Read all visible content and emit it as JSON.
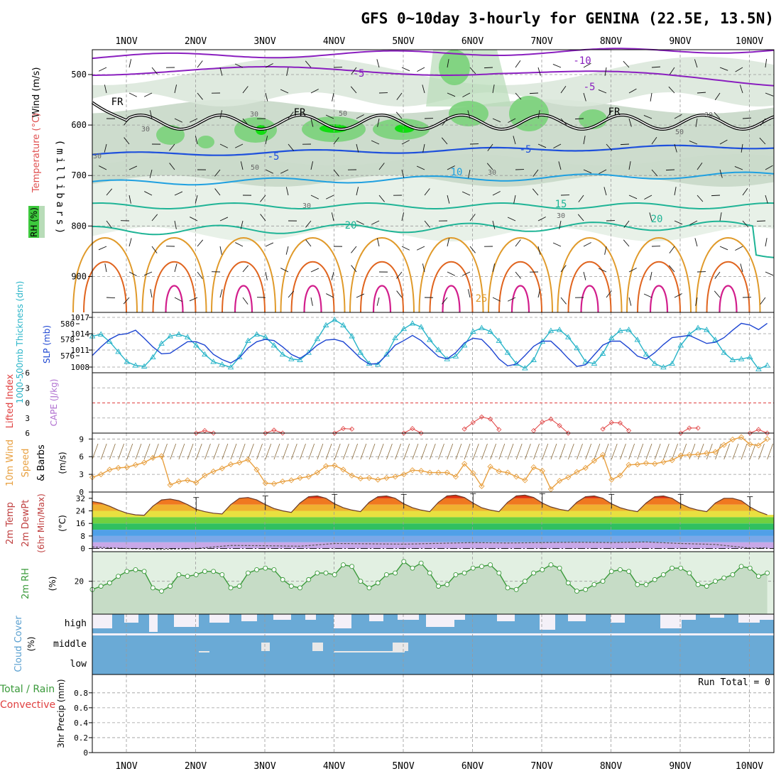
{
  "title": "GFS 0~10day 3-hourly for GENINA (22.5E, 13.5N)",
  "dates": [
    "1NOV",
    "2NOV",
    "3NOV",
    "4NOV",
    "5NOV",
    "6NOV",
    "7NOV",
    "8NOV",
    "9NOV",
    "10NOV"
  ],
  "colors": {
    "purple": "#8a1fbf",
    "black": "#000000",
    "blue": "#1e50dc",
    "lightblue": "#1fa0e0",
    "teal": "#1fb496",
    "orange": "#e09a2a",
    "darkorange": "#e0641e",
    "magenta": "#d21e8c",
    "rh_dark": "#3cc83c",
    "rh_mid": "#7ad27a",
    "rh_light": "#b8dcb8",
    "rh_gray": "#c8d8c8",
    "cloud": "#6aaad6",
    "cloud_bg": "#f4f0f8",
    "rh2m": "#3a9a3a",
    "rh2m_fill": "#e2f0e2",
    "wind10": "#e8a040",
    "barb": "#8a6a3a",
    "slp": "#1e46d2",
    "thick": "#28b4c8",
    "capeline": "#e04040",
    "li": "#e04040"
  },
  "upper": {
    "ylabel": "(millibars)",
    "legend_wind": "Wind (m/s)",
    "legend_temp": "Temperature (°C)",
    "legend_rh": "RH (%)",
    "yticks": [
      "500",
      "600",
      "700",
      "800",
      "900"
    ],
    "isotherm_labels": [
      {
        "text": "-10",
        "color": "purple"
      },
      {
        "text": "-5",
        "color": "purple"
      },
      {
        "text": "-5",
        "color": "purple"
      },
      {
        "text": "FR",
        "color": "black"
      },
      {
        "text": "FR",
        "color": "black"
      },
      {
        "text": "FR",
        "color": "black"
      },
      {
        "text": "-5",
        "color": "blue"
      },
      {
        "text": "-5",
        "color": "blue"
      },
      {
        "text": "10",
        "color": "lightblue"
      },
      {
        "text": "15",
        "color": "teal"
      },
      {
        "text": "20",
        "color": "teal"
      },
      {
        "text": "20",
        "color": "teal"
      },
      {
        "text": "25",
        "color": "orange"
      }
    ],
    "rh_labels": [
      "30",
      "30",
      "50",
      "50",
      "30",
      "30",
      "30",
      "30",
      "50",
      "30"
    ]
  },
  "slp_panel": {
    "left_label": "1000-500mb Thickness (dm)",
    "right_label": "SLP (mb)",
    "left_ticks": [
      "580",
      "578",
      "576"
    ],
    "right_ticks": [
      "1017",
      "1014",
      "1011",
      "1008"
    ]
  },
  "cape_panel": {
    "label_li": "Lifted Index",
    "label_cape": "CAPE (J/kg)",
    "ticks": [
      "-6",
      "-3",
      "0",
      "3",
      "6"
    ]
  },
  "wind_panel": {
    "label1": "10m Wind",
    "label2": "Speed",
    "label3": "& Barbs",
    "unit": "(m/s)",
    "ticks": [
      "9",
      "6",
      "3",
      "0"
    ]
  },
  "temp_panel": {
    "label1": "2m Temp",
    "label2": "2m DewPt",
    "label3": "(6hr Min/Max)",
    "unit": "(°C)",
    "ticks": [
      "32",
      "24",
      "16",
      "8",
      "0"
    ]
  },
  "rh_panel": {
    "label": "2m RH",
    "unit": "(%)",
    "ticks": [
      "20"
    ]
  },
  "cloud_panel": {
    "label": "Cloud Cover",
    "unit": "(%)",
    "ticks": [
      "high",
      "middle",
      "low"
    ]
  },
  "precip_panel": {
    "label_total": "Total / Rain",
    "label_conv": "Convective",
    "label_axis": "3hr Precip (mm)",
    "run_total": "Run Total = 0",
    "ticks": [
      "0.8",
      "0.6",
      "0.4",
      "0.2",
      "0"
    ]
  },
  "chart_data": [
    {
      "type": "line",
      "title": "Sea level pressure (mb)",
      "ylabel": "SLP (mb)",
      "ylim": [
        1007,
        1017.5
      ],
      "x": [
        0,
        0.125,
        0.25,
        0.375,
        0.5,
        0.625,
        0.75,
        0.875,
        1,
        1.125,
        1.25,
        1.375,
        1.5,
        1.625,
        1.75,
        1.875,
        2,
        2.125,
        2.25,
        2.375,
        2.5,
        2.625,
        2.75,
        2.875,
        3,
        3.125,
        3.25,
        3.375,
        3.5,
        3.625,
        3.75,
        3.875,
        4,
        4.125,
        4.25,
        4.375,
        4.5,
        4.625,
        4.75,
        4.875,
        5,
        5.125,
        5.25,
        5.375,
        5.5,
        5.625,
        5.75,
        5.875,
        6,
        6.125,
        6.25,
        6.375,
        6.5,
        6.625,
        6.75,
        6.875,
        7,
        7.125,
        7.25,
        7.375,
        7.5,
        7.625,
        7.75,
        7.875,
        8,
        8.125,
        8.25,
        8.375,
        8.5,
        8.625,
        8.75,
        8.875,
        9,
        9.125,
        9.25,
        9.375,
        9.5,
        9.625,
        9.75
      ],
      "values": [
        1010,
        1011.5,
        1012.8,
        1013.6,
        1013.8,
        1014.4,
        1013,
        1011.5,
        1010.3,
        1010.4,
        1011.4,
        1012.4,
        1012.4,
        1011.8,
        1010.2,
        1009.3,
        1008.7,
        1009.6,
        1011.3,
        1012.4,
        1012.8,
        1012.6,
        1011.5,
        1010.2,
        1009.5,
        1010.5,
        1011.8,
        1012.7,
        1012.8,
        1012.4,
        1011,
        1009.5,
        1008.5,
        1008.6,
        1010.1,
        1011.8,
        1012.6,
        1013.5,
        1012.6,
        1011.2,
        1009.8,
        1009.4,
        1010.5,
        1012.2,
        1013,
        1012.8,
        1011.3,
        1009.4,
        1008.2,
        1008.5,
        1010,
        1011.6,
        1012.5,
        1012.5,
        1011.1,
        1009.5,
        1008.1,
        1008.4,
        1010.1,
        1011.8,
        1012.5,
        1012.5,
        1011.3,
        1009.9,
        1009.4,
        1010.5,
        1011.9,
        1013.1,
        1013.3,
        1013.5,
        1012.8,
        1012.1,
        1012.3,
        1013.1,
        1014.4,
        1015.6,
        1015.3,
        1014.5,
        1015.6
      ]
    },
    {
      "type": "line",
      "title": "1000-500mb thickness (dm)",
      "ylabel": "Thickness (dm)",
      "ylim": [
        574.8,
        581.4
      ],
      "x": [
        0,
        0.125,
        0.25,
        0.375,
        0.5,
        0.625,
        0.75,
        0.875,
        1,
        1.125,
        1.25,
        1.375,
        1.5,
        1.625,
        1.75,
        1.875,
        2,
        2.125,
        2.25,
        2.375,
        2.5,
        2.625,
        2.75,
        2.875,
        3,
        3.125,
        3.25,
        3.375,
        3.5,
        3.625,
        3.75,
        3.875,
        4,
        4.125,
        4.25,
        4.375,
        4.5,
        4.625,
        4.75,
        4.875,
        5,
        5.125,
        5.25,
        5.375,
        5.5,
        5.625,
        5.75,
        5.875,
        6,
        6.125,
        6.25,
        6.375,
        6.5,
        6.625,
        6.75,
        6.875,
        7,
        7.125,
        7.25,
        7.375,
        7.5,
        7.625,
        7.75,
        7.875,
        8,
        8.125,
        8.25,
        8.375,
        8.5,
        8.625,
        8.75,
        8.875,
        9,
        9.125,
        9.25,
        9.375,
        9.5,
        9.625,
        9.75
      ],
      "values": [
        578.8,
        579,
        578.2,
        577.1,
        576,
        575.6,
        575.5,
        576.5,
        578,
        578.8,
        579,
        578.7,
        577.8,
        576.8,
        576,
        575.7,
        575.4,
        576.5,
        578.3,
        579,
        578.7,
        577.8,
        576.8,
        576.3,
        576.2,
        577,
        578.5,
        580,
        580.6,
        580,
        578.8,
        577,
        575.8,
        575.7,
        576.8,
        578.6,
        579.6,
        580.2,
        579.8,
        578.4,
        577.3,
        576.3,
        576.6,
        577.8,
        579.3,
        579.7,
        579.3,
        578.3,
        577,
        575.8,
        575.3,
        576.2,
        578.2,
        579.4,
        579.5,
        578.7,
        577.5,
        576,
        575.8,
        576.9,
        578.6,
        579.4,
        579.5,
        578.4,
        576.8,
        575.8,
        575.4,
        575.8,
        577.8,
        579,
        579.7,
        579.5,
        578.4,
        577,
        576.2,
        576.3,
        576.5,
        575.2,
        575.6
      ]
    },
    {
      "type": "line",
      "title": "Lifted Index",
      "ylabel": "Lifted Index",
      "ylim": [
        -6,
        6
      ],
      "x": [
        1.5,
        1.625,
        1.75,
        2.5,
        2.625,
        2.75,
        3.5,
        3.625,
        3.75,
        4.5,
        4.625,
        4.75,
        5.375,
        5.5,
        5.625,
        5.75,
        5.875,
        6.375,
        6.5,
        6.625,
        6.75,
        6.875,
        7.375,
        7.5,
        7.625,
        7.75,
        8.5,
        8.625,
        8.75,
        9.5,
        9.625,
        9.75
      ],
      "values": [
        6,
        5.5,
        6,
        6,
        5.4,
        6,
        6,
        5.1,
        5.2,
        6,
        5.1,
        6,
        5.2,
        3.9,
        2.8,
        3.2,
        5.3,
        5.5,
        3.8,
        3.2,
        4.5,
        6,
        5.2,
        3.9,
        4,
        5.5,
        6,
        5,
        5,
        6,
        5.3,
        6
      ]
    },
    {
      "type": "line",
      "title": "10m wind speed (m/s)",
      "ylabel": "Speed (m/s)",
      "ylim": [
        0,
        10
      ],
      "x": [
        0,
        0.125,
        0.25,
        0.375,
        0.5,
        0.625,
        0.75,
        0.875,
        1,
        1.125,
        1.25,
        1.375,
        1.5,
        1.625,
        1.75,
        1.875,
        2,
        2.125,
        2.25,
        2.375,
        2.5,
        2.625,
        2.75,
        2.875,
        3,
        3.125,
        3.25,
        3.375,
        3.5,
        3.625,
        3.75,
        3.875,
        4,
        4.125,
        4.25,
        4.375,
        4.5,
        4.625,
        4.75,
        4.875,
        5,
        5.125,
        5.25,
        5.375,
        5.5,
        5.625,
        5.75,
        5.875,
        6,
        6.125,
        6.25,
        6.375,
        6.5,
        6.625,
        6.75,
        6.875,
        7,
        7.125,
        7.25,
        7.375,
        7.5,
        7.625,
        7.75,
        7.875,
        8,
        8.125,
        8.25,
        8.375,
        8.5,
        8.625,
        8.75,
        8.875,
        9,
        9.125,
        9.25,
        9.375,
        9.5,
        9.625,
        9.75
      ],
      "values": [
        2.5,
        3,
        3.8,
        4.1,
        4.2,
        4.6,
        5,
        5.8,
        6.1,
        1.2,
        1.8,
        2,
        1.6,
        2.8,
        3.5,
        4,
        4.7,
        5,
        5.5,
        3.8,
        1.5,
        1.4,
        1.8,
        2,
        2.4,
        2.6,
        3.3,
        4.4,
        4.5,
        3.8,
        2.8,
        2.3,
        2.4,
        2.1,
        2.4,
        2.6,
        3,
        3.7,
        3.6,
        3.3,
        3.3,
        3.3,
        2.6,
        4.8,
        3.2,
        1,
        4.3,
        3.5,
        3.3,
        2.6,
        2,
        4.2,
        3.6,
        0.5,
        1.9,
        2.5,
        3.4,
        4.1,
        5.3,
        6.3,
        2.1,
        2.8,
        4.6,
        4.7,
        4.9,
        4.8,
        5.1,
        5.4,
        6.2,
        6.3,
        6.4,
        6.6,
        6.8,
        8,
        8.9,
        9.3,
        8.1,
        7.9,
        9
      ]
    },
    {
      "type": "area",
      "title": "2m temperature (°C)",
      "ylabel": "Temp (°C)",
      "ylim": [
        -2,
        36
      ],
      "x": [
        0,
        0.125,
        0.25,
        0.375,
        0.5,
        0.625,
        0.75,
        0.875,
        1,
        1.125,
        1.25,
        1.375,
        1.5,
        1.625,
        1.75,
        1.875,
        2,
        2.125,
        2.25,
        2.375,
        2.5,
        2.625,
        2.75,
        2.875,
        3,
        3.125,
        3.25,
        3.375,
        3.5,
        3.625,
        3.75,
        3.875,
        4,
        4.125,
        4.25,
        4.375,
        4.5,
        4.625,
        4.75,
        4.875,
        5,
        5.125,
        5.25,
        5.375,
        5.5,
        5.625,
        5.75,
        5.875,
        6,
        6.125,
        6.25,
        6.375,
        6.5,
        6.625,
        6.75,
        6.875,
        7,
        7.125,
        7.25,
        7.375,
        7.5,
        7.625,
        7.75,
        7.875,
        8,
        8.125,
        8.25,
        8.375,
        8.5,
        8.625,
        8.75,
        8.875,
        9,
        9.125,
        9.25,
        9.375,
        9.5,
        9.625,
        9.75
      ],
      "values": [
        30,
        29,
        27,
        24.5,
        22.5,
        21.5,
        21.2,
        27,
        31,
        31.5,
        30.5,
        28,
        25,
        23.5,
        22.5,
        22,
        28,
        32,
        32.5,
        31,
        28,
        25.5,
        24,
        23,
        29,
        33,
        33.5,
        32,
        28.5,
        26,
        24.5,
        23.5,
        29.5,
        33,
        33.5,
        32,
        28.5,
        26,
        24.5,
        23.5,
        29.5,
        33.5,
        34,
        32.5,
        29,
        26,
        24.5,
        23.5,
        29.5,
        33.5,
        34,
        32.5,
        29,
        26.5,
        25,
        24,
        29.5,
        33,
        33.5,
        32,
        28.5,
        26,
        24.5,
        23.5,
        29,
        33,
        33.5,
        32,
        28.5,
        26,
        24.5,
        23.5,
        29,
        32,
        32,
        30.5,
        26.5,
        23.5,
        21.5
      ]
    },
    {
      "type": "line",
      "title": "2m dew point (°C)",
      "ylabel": "DewPt (°C)",
      "ylim": [
        -2,
        36
      ],
      "x": [
        0,
        0.5,
        1,
        1.5,
        2,
        2.5,
        3,
        3.5,
        4,
        4.5,
        5,
        5.5,
        6,
        6.5,
        7,
        7.5,
        8,
        8.5,
        9,
        9.5,
        9.75
      ],
      "values": [
        1,
        0,
        -0.5,
        0,
        2,
        1.8,
        1.5,
        3.2,
        3,
        2.8,
        3.3,
        3.8,
        3.5,
        3.8,
        4,
        3.8,
        4.2,
        3.2,
        2.6,
        0.2,
        0.5
      ]
    },
    {
      "type": "area",
      "title": "2m relative humidity (%)",
      "ylabel": "RH (%)",
      "ylim": [
        0,
        38
      ],
      "x": [
        0,
        0.125,
        0.25,
        0.375,
        0.5,
        0.625,
        0.75,
        0.875,
        1,
        1.125,
        1.25,
        1.375,
        1.5,
        1.625,
        1.75,
        1.875,
        2,
        2.125,
        2.25,
        2.375,
        2.5,
        2.625,
        2.75,
        2.875,
        3,
        3.125,
        3.25,
        3.375,
        3.5,
        3.625,
        3.75,
        3.875,
        4,
        4.125,
        4.25,
        4.375,
        4.5,
        4.625,
        4.75,
        4.875,
        5,
        5.125,
        5.25,
        5.375,
        5.5,
        5.625,
        5.75,
        5.875,
        6,
        6.125,
        6.25,
        6.375,
        6.5,
        6.625,
        6.75,
        6.875,
        7,
        7.125,
        7.25,
        7.375,
        7.5,
        7.625,
        7.75,
        7.875,
        8,
        8.125,
        8.25,
        8.375,
        8.5,
        8.625,
        8.75,
        8.875,
        9,
        9.125,
        9.25,
        9.375,
        9.5,
        9.625,
        9.75
      ],
      "values": [
        15,
        17,
        19,
        23,
        26,
        27,
        26,
        16,
        14,
        17,
        24,
        23,
        24,
        26,
        26,
        24,
        16,
        17,
        25,
        27,
        28,
        27,
        21,
        17,
        16,
        21,
        25,
        25,
        24,
        30,
        29,
        20,
        16,
        19,
        24,
        25,
        32,
        28,
        31,
        25,
        17,
        18,
        24,
        25,
        28,
        29,
        30,
        25,
        16,
        15,
        20,
        25,
        27,
        30,
        28,
        19,
        14,
        15,
        18,
        20,
        26,
        27,
        26,
        18,
        18,
        21,
        24,
        28,
        28,
        25,
        18,
        17,
        20,
        22,
        24,
        29,
        28,
        23,
        25
      ]
    },
    {
      "type": "bar",
      "title": "3hr Precip (mm)",
      "ylabel": "3hr Precip (mm)",
      "ylim": [
        0,
        1
      ],
      "categories": [
        "1NOV",
        "2NOV",
        "3NOV",
        "4NOV",
        "5NOV",
        "6NOV",
        "7NOV",
        "8NOV",
        "9NOV",
        "10NOV"
      ],
      "values": [
        0,
        0,
        0,
        0,
        0,
        0,
        0,
        0,
        0,
        0
      ]
    }
  ]
}
